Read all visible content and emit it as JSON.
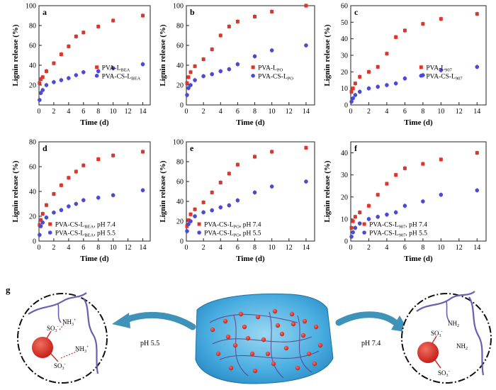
{
  "colors": {
    "red": "#e0332a",
    "blue": "#4a4ad6",
    "frame": "#222222",
    "gel": "#3fa8d8",
    "arrow": "#3f93b8",
    "molecule": "#6a5fb0"
  },
  "chart_data": [
    {
      "panel": "a",
      "type": "scatter",
      "xlabel": "Time (d)",
      "ylabel": "Lignin release (%)",
      "xlim": [
        0,
        15
      ],
      "ylim": [
        0,
        100
      ],
      "xticks": [
        0,
        2,
        4,
        6,
        8,
        10,
        12,
        14
      ],
      "yticks": [
        20,
        40,
        60,
        80,
        100
      ],
      "legend_position": "middle-right",
      "series": [
        {
          "name_main": "PVA-L",
          "name_sub": "BEA",
          "color": "red",
          "x": [
            0.083,
            0.25,
            0.5,
            1,
            2,
            3,
            4,
            5,
            6,
            8,
            10,
            14
          ],
          "y": [
            22,
            26,
            28,
            34,
            42,
            51,
            59,
            69,
            73,
            79,
            85,
            90
          ]
        },
        {
          "name_main": "PVA-CS-L",
          "name_sub": "BEA",
          "color": "blue",
          "x": [
            0.083,
            0.25,
            0.5,
            1,
            2,
            3,
            4,
            5,
            6,
            8,
            10,
            14
          ],
          "y": [
            5,
            12,
            15,
            20,
            23,
            25,
            27,
            30,
            33,
            34,
            37,
            41
          ]
        }
      ]
    },
    {
      "panel": "b",
      "type": "scatter",
      "xlabel": "Time (d)",
      "ylabel": "Lignin release (%)",
      "xlim": [
        0,
        15
      ],
      "ylim": [
        0,
        100
      ],
      "xticks": [
        0,
        2,
        4,
        6,
        8,
        10,
        12,
        14
      ],
      "yticks": [
        0,
        20,
        40,
        60,
        80,
        100
      ],
      "legend_position": "middle-right",
      "series": [
        {
          "name_main": "PVA-L",
          "name_sub": "PO",
          "color": "red",
          "x": [
            0.083,
            0.25,
            0.5,
            1,
            2,
            3,
            4,
            5,
            6,
            8,
            10,
            14
          ],
          "y": [
            22,
            28,
            33,
            39,
            46,
            56,
            70,
            79,
            84,
            89,
            94,
            100
          ]
        },
        {
          "name_main": "PVA-CS-L",
          "name_sub": "PO",
          "color": "blue",
          "x": [
            0.083,
            0.25,
            0.5,
            1,
            2,
            3,
            4,
            5,
            6,
            8,
            10,
            14
          ],
          "y": [
            10,
            17,
            20,
            25,
            29,
            31,
            34,
            36,
            41,
            49,
            55,
            60
          ]
        }
      ]
    },
    {
      "panel": "c",
      "type": "scatter",
      "xlabel": "Time (d)",
      "ylabel": "Lignin release (%)",
      "xlim": [
        0,
        15
      ],
      "ylim": [
        0,
        60
      ],
      "xticks": [
        0,
        2,
        4,
        6,
        8,
        10,
        12,
        14
      ],
      "yticks": [
        0,
        10,
        20,
        30,
        40,
        50,
        60
      ],
      "legend_position": "middle-right",
      "series": [
        {
          "name_main": "PVA-L",
          "name_sub": "907",
          "color": "red",
          "x": [
            0.083,
            0.25,
            0.5,
            1,
            2,
            3,
            4,
            5,
            6,
            8,
            10,
            14
          ],
          "y": [
            8,
            10,
            13,
            17,
            20,
            23,
            31,
            41,
            45,
            49,
            52,
            55
          ]
        },
        {
          "name_main": "PVA-CS-L",
          "name_sub": "907",
          "color": "blue",
          "x": [
            0.083,
            0.25,
            0.5,
            1,
            2,
            3,
            4,
            5,
            6,
            8,
            10,
            14
          ],
          "y": [
            2,
            4,
            6,
            8,
            10,
            11,
            12,
            13,
            16,
            18,
            21,
            23
          ]
        }
      ]
    },
    {
      "panel": "d",
      "type": "scatter",
      "xlabel": "Time (d)",
      "ylabel": "Lignin release (%)",
      "xlim": [
        0,
        15
      ],
      "ylim": [
        0,
        80
      ],
      "xticks": [
        0,
        2,
        4,
        6,
        8,
        10,
        12,
        14
      ],
      "yticks": [
        0,
        20,
        40,
        60,
        80
      ],
      "legend_position": "bottom-right",
      "series": [
        {
          "name_main": "PVA-CS-L",
          "name_sub": "BEA",
          "name_suffix": ", pH 7.4",
          "color": "red",
          "x": [
            0.083,
            0.25,
            0.5,
            1,
            2,
            3,
            4,
            5,
            6,
            8,
            10,
            14
          ],
          "y": [
            13,
            17,
            22,
            29,
            38,
            45,
            51,
            56,
            61,
            66,
            69,
            72
          ]
        },
        {
          "name_main": "PVA-CS-L",
          "name_sub": "BEA",
          "name_suffix": ", pH 5.5",
          "color": "blue",
          "x": [
            0.083,
            0.25,
            0.5,
            1,
            2,
            3,
            4,
            5,
            6,
            8,
            10,
            14
          ],
          "y": [
            5,
            12,
            15,
            19,
            23,
            25,
            28,
            30,
            33,
            35,
            37,
            41
          ]
        }
      ]
    },
    {
      "panel": "e",
      "type": "scatter",
      "xlabel": "Time (d)",
      "ylabel": "Lignin release (%)",
      "xlim": [
        0,
        15
      ],
      "ylim": [
        0,
        100
      ],
      "xticks": [
        0,
        2,
        4,
        6,
        8,
        10,
        12,
        14
      ],
      "yticks": [
        0,
        20,
        40,
        60,
        80,
        100
      ],
      "legend_position": "bottom-right",
      "series": [
        {
          "name_main": "PVA-CS-L",
          "name_sub": "PO",
          "name_suffix": ", pH 7.4",
          "color": "red",
          "x": [
            0.083,
            0.25,
            0.5,
            1,
            2,
            3,
            4,
            5,
            6,
            8,
            10,
            14
          ],
          "y": [
            15,
            21,
            27,
            32,
            39,
            49,
            59,
            68,
            77,
            85,
            90,
            94
          ]
        },
        {
          "name_main": "PVA-CS-L",
          "name_sub": "PO",
          "name_suffix": ", pH 5.5",
          "color": "blue",
          "x": [
            0.083,
            0.25,
            0.5,
            1,
            2,
            3,
            4,
            5,
            6,
            8,
            10,
            14
          ],
          "y": [
            10,
            17,
            20,
            25,
            29,
            31,
            34,
            36,
            41,
            49,
            55,
            60
          ]
        }
      ]
    },
    {
      "panel": "f",
      "type": "scatter",
      "xlabel": "Time (d)",
      "ylabel": "Lignin release (%)",
      "xlim": [
        0,
        15
      ],
      "ylim": [
        0,
        45
      ],
      "xticks": [
        0,
        2,
        4,
        6,
        8,
        10,
        12,
        14
      ],
      "yticks": [
        0,
        10,
        20,
        30,
        40
      ],
      "legend_position": "bottom-right",
      "series": [
        {
          "name_main": "PVA-CS-L",
          "name_sub": "907",
          "name_suffix": ", pH 7.4",
          "color": "red",
          "x": [
            0.083,
            0.25,
            0.5,
            1,
            2,
            3,
            4,
            5,
            6,
            8,
            10,
            14
          ],
          "y": [
            6,
            9,
            11,
            13,
            16,
            21,
            26,
            30,
            33,
            35,
            37,
            40
          ]
        },
        {
          "name_main": "PVA-CS-L",
          "name_sub": "907",
          "name_suffix": ", pH 5.5",
          "color": "blue",
          "x": [
            0.083,
            0.25,
            0.5,
            1,
            2,
            3,
            4,
            5,
            6,
            8,
            10,
            14
          ],
          "y": [
            2,
            4,
            6,
            8,
            10,
            11,
            12,
            13,
            16,
            18,
            21,
            23
          ]
        }
      ]
    }
  ],
  "schematic": {
    "panel": "g",
    "left_label": "pH 5.5",
    "right_label": "pH 7.4",
    "left_groups": {
      "amine_top": "NH",
      "amine_top_sub": "3",
      "amine_top_sup": "+",
      "sulfonate_top": "SO",
      "sulfonate_top_sub": "3",
      "sulfonate_top_sup": "-",
      "amine_right": "NH",
      "amine_right_sub": "3",
      "amine_right_sup": "+",
      "sulfonate_bottom": "SO",
      "sulfonate_bottom_sub": "3",
      "sulfonate_bottom_sup": "-"
    },
    "right_groups": {
      "amine_top": "NH",
      "amine_top_sub": "2",
      "sulfonate_top": "SO",
      "sulfonate_top_sub": "3",
      "sulfonate_top_sup": "-",
      "amine_right": "NH",
      "amine_right_sub": "2",
      "sulfonate_bottom": "SO",
      "sulfonate_bottom_sub": "3",
      "sulfonate_bottom_sup": "-"
    }
  }
}
